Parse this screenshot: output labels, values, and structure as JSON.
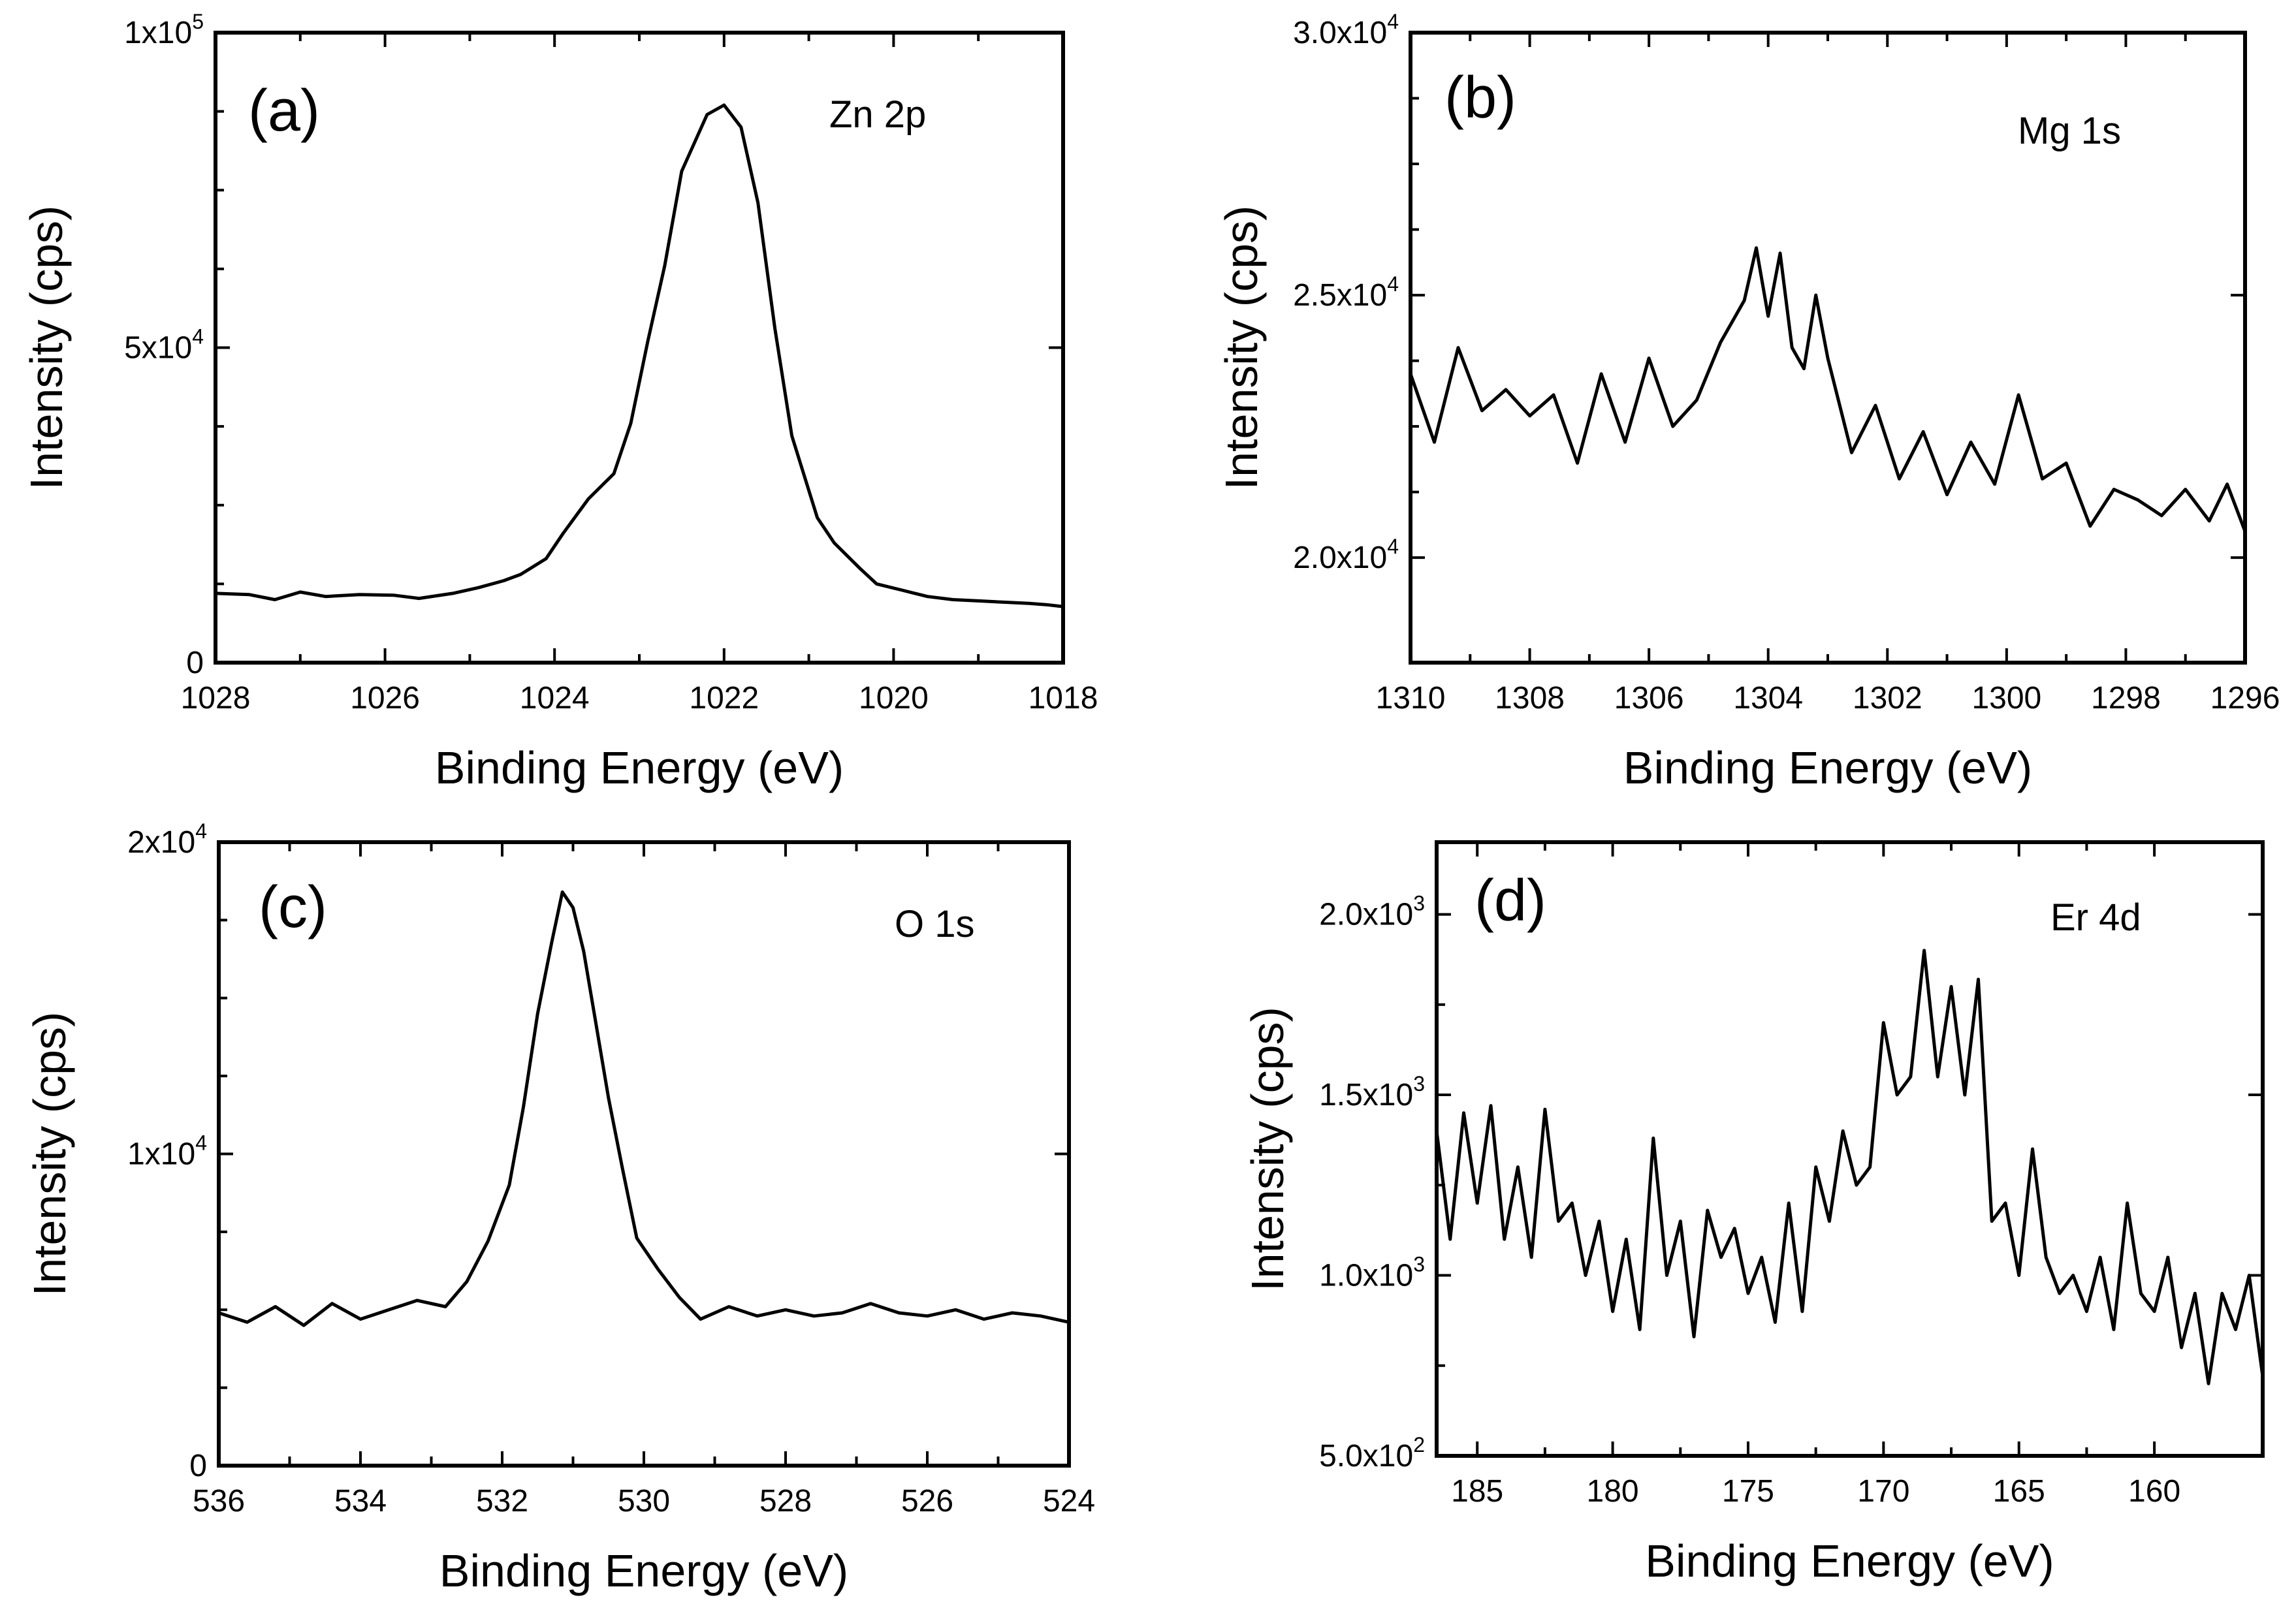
{
  "chart_data": [
    {
      "type": "line",
      "panel": "(a)",
      "annotation": "Zn 2p",
      "xlabel": "Binding Energy (eV)",
      "ylabel": "Intensity (cps)",
      "xlim": [
        1028,
        1018
      ],
      "ylim": [
        0,
        100000
      ],
      "xticks": [
        1028,
        1026,
        1024,
        1022,
        1020,
        1018
      ],
      "xtick_labels": [
        "1028",
        "1026",
        "1024",
        "1022",
        "1020",
        "1018"
      ],
      "yticks": [
        0,
        50000,
        100000
      ],
      "ytick_labels": [
        {
          "base": "0",
          "exp": ""
        },
        {
          "base": "5x10",
          "exp": "4"
        },
        {
          "base": "1x10",
          "exp": "5"
        }
      ],
      "x": [
        1028,
        1027.6,
        1027.3,
        1027,
        1026.7,
        1026.3,
        1025.9,
        1025.6,
        1025.2,
        1024.9,
        1024.6,
        1024.4,
        1024.1,
        1023.9,
        1023.6,
        1023.3,
        1023.1,
        1022.9,
        1022.7,
        1022.5,
        1022.2,
        1022.0,
        1021.8,
        1021.6,
        1021.4,
        1021.2,
        1020.9,
        1020.7,
        1020.4,
        1020.2,
        1019.9,
        1019.6,
        1019.3,
        1019.0,
        1018.7,
        1018.4,
        1018.2,
        1018
      ],
      "values": [
        11000,
        10800,
        10000,
        11200,
        10500,
        10800,
        10700,
        10200,
        11000,
        11900,
        13000,
        14000,
        16500,
        20500,
        26000,
        30000,
        38000,
        51000,
        63000,
        78000,
        87000,
        88500,
        85000,
        73000,
        53000,
        36000,
        23000,
        19000,
        15000,
        12500,
        11500,
        10500,
        10000,
        9800,
        9600,
        9400,
        9200,
        8900
      ]
    },
    {
      "type": "line",
      "panel": "(b)",
      "annotation": "Mg 1s",
      "xlabel": "Binding Energy (eV)",
      "ylabel": "Intensity (cps)",
      "xlim": [
        1310,
        1296
      ],
      "ylim": [
        18000,
        30000
      ],
      "xticks": [
        1310,
        1308,
        1306,
        1304,
        1302,
        1300,
        1298,
        1296
      ],
      "xtick_labels": [
        "1310",
        "1308",
        "1306",
        "1304",
        "1302",
        "1300",
        "1298",
        "1296"
      ],
      "yticks": [
        20000,
        25000,
        30000
      ],
      "ytick_labels": [
        {
          "base": "2.0x10",
          "exp": "4"
        },
        {
          "base": "2.5x10",
          "exp": "4"
        },
        {
          "base": "3.0x10",
          "exp": "4"
        }
      ],
      "x": [
        1310,
        1309.6,
        1309.2,
        1308.8,
        1308.4,
        1308.0,
        1307.6,
        1307.2,
        1306.8,
        1306.4,
        1306.0,
        1305.6,
        1305.2,
        1304.8,
        1304.4,
        1304.2,
        1304.0,
        1303.8,
        1303.6,
        1303.4,
        1303.2,
        1303.0,
        1302.6,
        1302.2,
        1301.8,
        1301.4,
        1301.0,
        1300.6,
        1300.2,
        1299.8,
        1299.4,
        1299.0,
        1298.6,
        1298.2,
        1297.8,
        1297.4,
        1297.0,
        1296.6,
        1296.3,
        1296
      ],
      "values": [
        23500,
        22200,
        24000,
        22800,
        23200,
        22700,
        23100,
        21800,
        23500,
        22200,
        23800,
        22500,
        23000,
        24100,
        24900,
        25900,
        24600,
        25800,
        24000,
        23600,
        25000,
        23800,
        22000,
        22900,
        21500,
        22400,
        21200,
        22200,
        21400,
        23100,
        21500,
        21800,
        20600,
        21300,
        21100,
        20800,
        21300,
        20700,
        21400,
        20500
      ]
    },
    {
      "type": "line",
      "panel": "(c)",
      "annotation": "O 1s",
      "xlabel": "Binding Energy (eV)",
      "ylabel": "Intensity (cps)",
      "xlim": [
        536,
        524
      ],
      "ylim": [
        0,
        20000
      ],
      "xticks": [
        536,
        535,
        534,
        533,
        532,
        531,
        530,
        529,
        528,
        527,
        526,
        525,
        524
      ],
      "xtick_labels": [
        "536",
        "",
        "534",
        "",
        "532",
        "",
        "530",
        "",
        "528",
        "",
        "526",
        "",
        "524"
      ],
      "yticks": [
        0,
        10000,
        20000
      ],
      "ytick_labels": [
        {
          "base": "0",
          "exp": ""
        },
        {
          "base": "1x10",
          "exp": "4"
        },
        {
          "base": "2x10",
          "exp": "4"
        }
      ],
      "x": [
        536,
        535.6,
        535.2,
        534.8,
        534.4,
        534.0,
        533.6,
        533.2,
        532.8,
        532.5,
        532.2,
        531.9,
        531.7,
        531.5,
        531.3,
        531.15,
        531.0,
        530.85,
        530.7,
        530.5,
        530.3,
        530.1,
        529.8,
        529.5,
        529.2,
        528.8,
        528.4,
        528.0,
        527.6,
        527.2,
        526.8,
        526.4,
        526.0,
        525.6,
        525.2,
        524.8,
        524.4,
        524
      ],
      "values": [
        4900,
        4600,
        5100,
        4500,
        5200,
        4700,
        5000,
        5300,
        5100,
        5900,
        7200,
        9000,
        11500,
        14500,
        16800,
        18400,
        17900,
        16500,
        14500,
        11800,
        9500,
        7300,
        6300,
        5400,
        4700,
        5100,
        4800,
        5000,
        4800,
        4900,
        5200,
        4900,
        4800,
        5000,
        4700,
        4900,
        4800,
        4600
      ]
    },
    {
      "type": "line",
      "panel": "(d)",
      "annotation": "Er 4d",
      "xlabel": "Binding Energy (eV)",
      "ylabel": "Intensity (cps)",
      "xlim": [
        186.5,
        156
      ],
      "ylim": [
        500,
        2200
      ],
      "xticks": [
        185,
        180,
        175,
        170,
        165,
        160
      ],
      "xtick_labels": [
        "185",
        "180",
        "175",
        "170",
        "165",
        "160"
      ],
      "yticks": [
        500,
        1000,
        1500,
        2000
      ],
      "ytick_labels": [
        {
          "base": "5.0x10",
          "exp": "2"
        },
        {
          "base": "1.0x10",
          "exp": "3"
        },
        {
          "base": "1.5x10",
          "exp": "3"
        },
        {
          "base": "2.0x10",
          "exp": "3"
        }
      ],
      "x": [
        186.5,
        186.0,
        185.5,
        185.0,
        184.5,
        184.0,
        183.5,
        183.0,
        182.5,
        182.0,
        181.5,
        181.0,
        180.5,
        180.0,
        179.5,
        179.0,
        178.5,
        178.0,
        177.5,
        177.0,
        176.5,
        176.0,
        175.5,
        175.0,
        174.5,
        174.0,
        173.5,
        173.0,
        172.5,
        172.0,
        171.5,
        171.0,
        170.5,
        170.0,
        169.5,
        169.0,
        168.5,
        168.0,
        167.5,
        167.0,
        166.5,
        166.0,
        165.5,
        165.0,
        164.5,
        164.0,
        163.5,
        163.0,
        162.5,
        162.0,
        161.5,
        161.0,
        160.5,
        160.0,
        159.5,
        159.0,
        158.5,
        158.0,
        157.5,
        157.0,
        156.5,
        156.0
      ],
      "values": [
        1400,
        1100,
        1450,
        1200,
        1470,
        1100,
        1300,
        1050,
        1460,
        1150,
        1200,
        1000,
        1150,
        900,
        1100,
        850,
        1380,
        1000,
        1150,
        830,
        1180,
        1050,
        1130,
        950,
        1050,
        870,
        1200,
        900,
        1300,
        1150,
        1400,
        1250,
        1300,
        1700,
        1500,
        1550,
        1900,
        1550,
        1800,
        1500,
        1820,
        1150,
        1200,
        1000,
        1350,
        1050,
        950,
        1000,
        900,
        1050,
        850,
        1200,
        950,
        900,
        1050,
        800,
        950,
        700,
        950,
        850,
        1000,
        720
      ]
    }
  ]
}
